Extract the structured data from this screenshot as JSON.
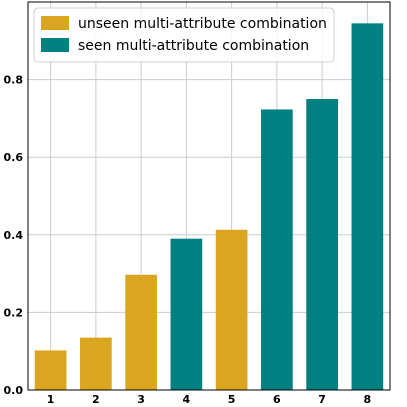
{
  "chart_data": {
    "type": "bar",
    "categories": [
      "1",
      "2",
      "3",
      "4",
      "5",
      "6",
      "7",
      "8"
    ],
    "values": [
      0.102,
      0.135,
      0.297,
      0.39,
      0.413,
      0.723,
      0.75,
      0.945
    ],
    "groups": [
      "unseen",
      "unseen",
      "unseen",
      "seen",
      "unseen",
      "seen",
      "seen",
      "seen"
    ],
    "series": [
      {
        "key": "unseen",
        "name": "unseen multi-attribute combination",
        "color": "#DAA520"
      },
      {
        "key": "seen",
        "name": "seen multi-attribute combination",
        "color": "#008080"
      }
    ],
    "yticks": [
      "0.0",
      "0.2",
      "0.4",
      "0.6",
      "0.8"
    ],
    "ylim": [
      0,
      1.0
    ],
    "grid": true,
    "legend_position": "top-left",
    "title": "",
    "xlabel": "",
    "ylabel": ""
  }
}
